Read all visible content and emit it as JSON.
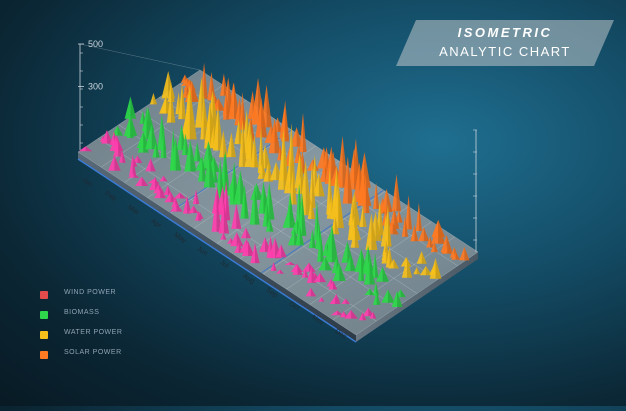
{
  "title": {
    "line1": "ISOMETRIC",
    "line2": "ANALYTIC CHART"
  },
  "colors": {
    "wind": "#ff3fae",
    "biomass": "#2ed84a",
    "water": "#f6c01c",
    "solar": "#ff7a22",
    "legend_wind": "#e14b4b"
  },
  "legend": [
    {
      "label": "WIND POWER",
      "color": "#e14b4b"
    },
    {
      "label": "BIOMASS",
      "color": "#2ed84a"
    },
    {
      "label": "WATER POWER",
      "color": "#f6c01c"
    },
    {
      "label": "SOLAR POWER",
      "color": "#ff7a22"
    }
  ],
  "chart_data": {
    "type": "area",
    "months": [
      "Jan",
      "Feb",
      "Mar",
      "Apr",
      "May",
      "Jun",
      "Jul",
      "Aug",
      "Sep",
      "Oct",
      "Nov",
      "Dec"
    ],
    "yticks": [
      "500",
      "300"
    ],
    "ylim": [
      0,
      500
    ],
    "series": [
      {
        "name": "WIND POWER",
        "values": [
          90,
          120,
          80,
          60,
          110,
          220,
          90,
          130,
          60,
          100,
          80,
          50
        ]
      },
      {
        "name": "BIOMASS",
        "values": [
          150,
          230,
          260,
          200,
          240,
          300,
          260,
          250,
          220,
          210,
          180,
          90
        ]
      },
      {
        "name": "WATER POWER",
        "values": [
          180,
          280,
          330,
          380,
          300,
          340,
          280,
          360,
          260,
          230,
          150,
          120
        ]
      },
      {
        "name": "SOLAR POWER",
        "values": [
          120,
          200,
          250,
          280,
          240,
          220,
          300,
          260,
          280,
          200,
          170,
          110
        ]
      }
    ]
  }
}
